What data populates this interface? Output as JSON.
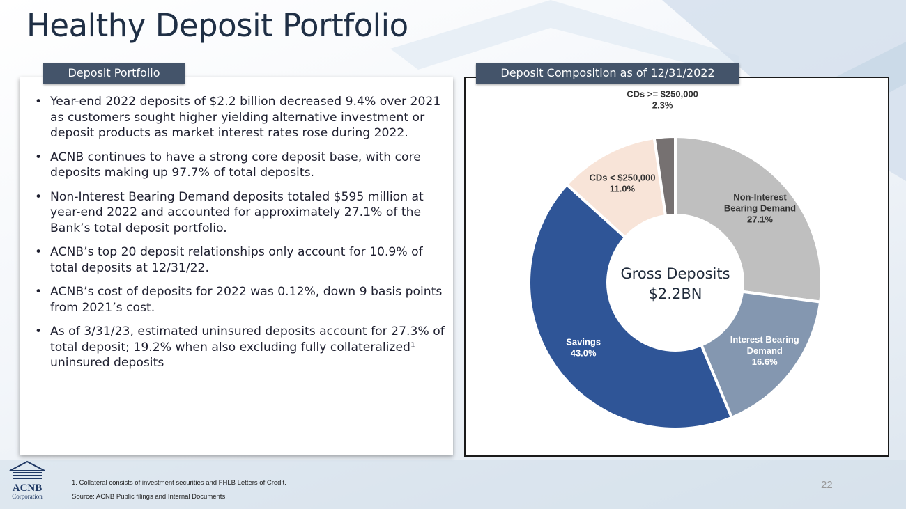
{
  "page": {
    "title": "Healthy Deposit Portfolio",
    "page_number": "22"
  },
  "left_panel": {
    "tag": "Deposit Portfolio",
    "bullet_char": "•",
    "bullets": [
      "Year-end 2022 deposits of $2.2 billion decreased 9.4% over 2021 as customers sought higher yielding alternative investment or deposit products as market interest rates rose during 2022.",
      "ACNB continues to have a strong core deposit base, with core deposits making up 97.7% of total deposits.",
      "Non-Interest Bearing Demand deposits totaled $595 million at year-end 2022 and accounted for approximately 27.1% of the Bank’s total deposit portfolio.",
      "ACNB’s top 20 deposit relationships only account for 10.9% of total deposits at 12/31/22.",
      "ACNB’s cost of deposits for 2022 was 0.12%, down 9 basis points from 2021’s cost.",
      "As of 3/31/23, estimated uninsured deposits account for 27.3% of total deposit; 19.2% when also excluding fully collateralized¹ uninsured deposits"
    ]
  },
  "right_panel": {
    "tag": "Deposit Composition as of 12/31/2022"
  },
  "chart_data": {
    "type": "pie",
    "donut": true,
    "center_label": [
      "Gross Deposits",
      "$2.2BN"
    ],
    "slices": [
      {
        "name": "Non-Interest Bearing Demand",
        "label_lines": [
          "Non-Interest",
          "Bearing Demand"
        ],
        "value": 27.1,
        "value_label": "27.1%",
        "color": "#bfbfbf",
        "label_color": "#333333"
      },
      {
        "name": "Interest Bearing Demand",
        "label_lines": [
          "Interest Bearing",
          "Demand"
        ],
        "value": 16.6,
        "value_label": "16.6%",
        "color": "#8497b0",
        "label_color": "#ffffff"
      },
      {
        "name": "Savings",
        "label_lines": [
          "Savings"
        ],
        "value": 43.0,
        "value_label": "43.0%",
        "color": "#2f5597",
        "label_color": "#ffffff"
      },
      {
        "name": "CDs < $250,000",
        "label_lines": [
          "CDs < $250,000"
        ],
        "value": 11.0,
        "value_label": "11.0%",
        "color": "#f8e4d8",
        "label_color": "#333333"
      },
      {
        "name": "CDs >= $250,000",
        "label_lines": [
          "CDs >= $250,000"
        ],
        "value": 2.3,
        "value_label": "2.3%",
        "color": "#767171",
        "label_color": "#333333"
      }
    ]
  },
  "footer": {
    "footnote": "1.  Collateral consists of investment securities and FHLB Letters of Credit.",
    "source": "Source:   ACNB Public filings and Internal Documents.",
    "logo_name": "ACNB",
    "logo_sub": "Corporation"
  }
}
